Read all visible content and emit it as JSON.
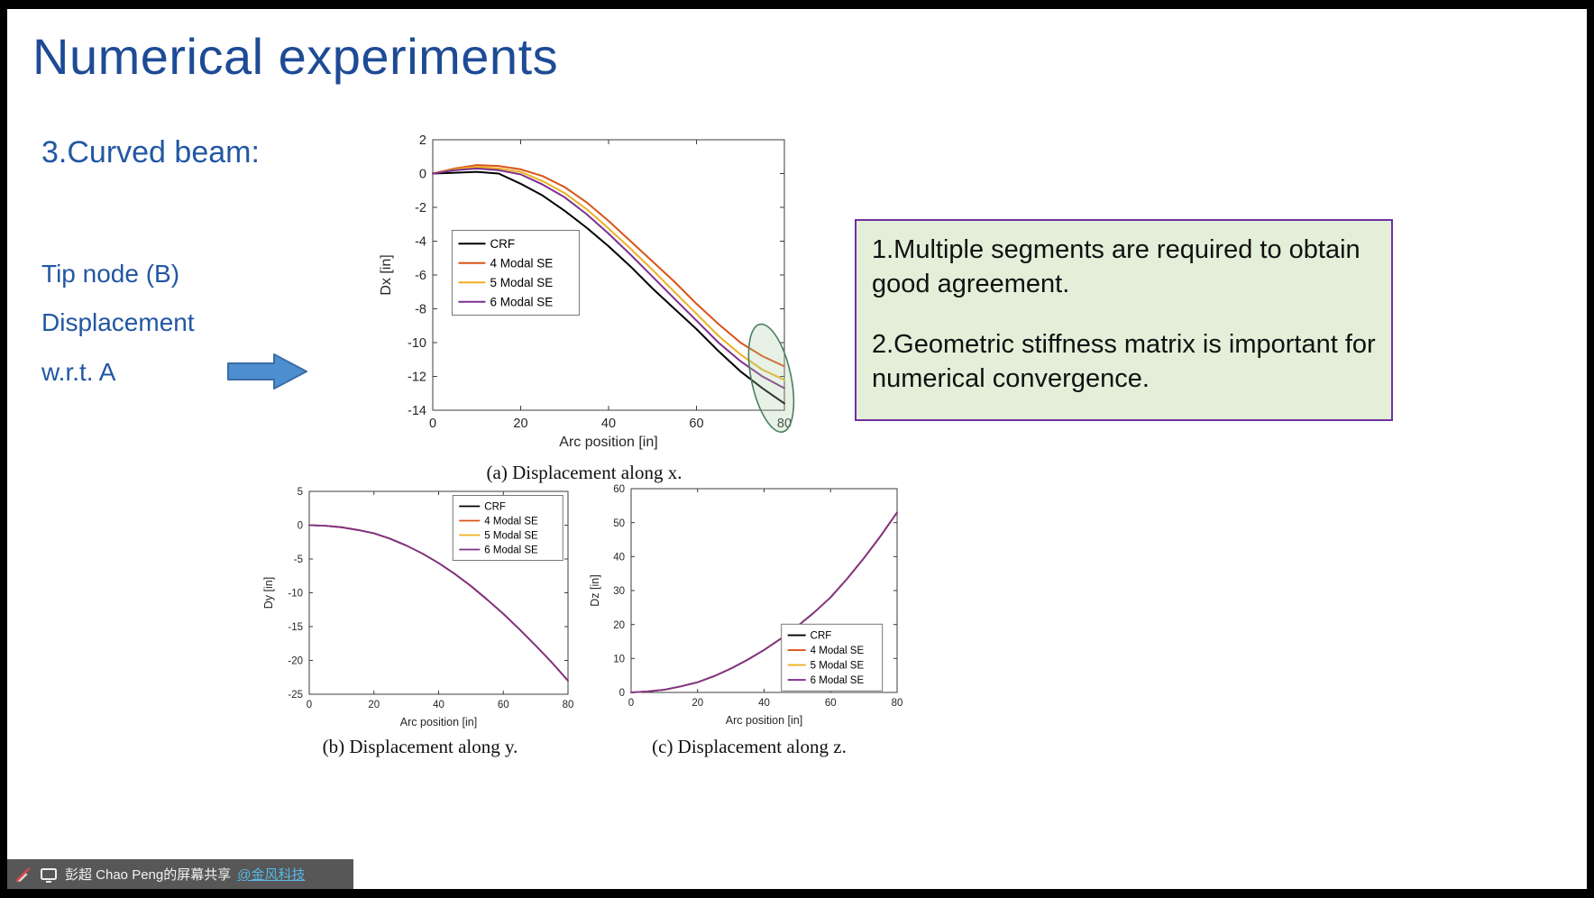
{
  "window": {
    "share_bar": {
      "presenter": "彭超 Chao Peng的屏幕共享",
      "org_link": "@金风科技",
      "icons": [
        "annotation-disabled-icon",
        "screen-share-icon"
      ],
      "bar_color": "#575757",
      "link_color": "#56b8e8"
    }
  },
  "slide": {
    "title": "Numerical experiments",
    "section": "3.Curved beam:",
    "left_notes": [
      "Tip node (B)",
      "Displacement",
      "w.r.t. A"
    ],
    "arrow_icon": "right-arrow",
    "colors": {
      "title_blue": "#1e4b96",
      "text_blue": "#2257a4",
      "arrow_fill": "#4d8ed0",
      "callout_border": "#7030a0",
      "callout_fill": "#e3efd9"
    },
    "callout": {
      "lines": [
        "1.Multiple segments are required to obtain good agreement.",
        "2.Geometric stiffness matrix is important for numerical convergence."
      ]
    }
  },
  "chart_data": [
    {
      "id": "a",
      "type": "line",
      "caption": "(a) Displacement along x.",
      "xlabel": "Arc position [in]",
      "ylabel": "Dx [in]",
      "xlim": [
        0,
        80
      ],
      "ylim": [
        -14,
        2
      ],
      "xticks": [
        0,
        20,
        40,
        60,
        80
      ],
      "yticks": [
        -14,
        -12,
        -10,
        -8,
        -6,
        -4,
        -2,
        0,
        2
      ],
      "grid": false,
      "legend_position": "left-middle",
      "x": [
        0,
        5,
        10,
        15,
        20,
        25,
        30,
        35,
        40,
        45,
        50,
        55,
        60,
        65,
        70,
        75,
        80
      ],
      "series": [
        {
          "name": "CRF",
          "color": "#000000",
          "values": [
            0,
            0.05,
            0.1,
            0,
            -0.6,
            -1.3,
            -2.2,
            -3.2,
            -4.3,
            -5.5,
            -6.8,
            -8.0,
            -9.2,
            -10.5,
            -11.7,
            -12.7,
            -13.6
          ]
        },
        {
          "name": "4 Modal SE",
          "color": "#D95319",
          "values": [
            0,
            0.3,
            0.5,
            0.45,
            0.25,
            -0.15,
            -0.8,
            -1.7,
            -2.8,
            -4.0,
            -5.2,
            -6.4,
            -7.7,
            -8.9,
            -10.0,
            -10.8,
            -11.4
          ]
        },
        {
          "name": "5 Modal SE",
          "color": "#EDB120",
          "values": [
            0,
            0.25,
            0.4,
            0.3,
            0.1,
            -0.45,
            -1.15,
            -2.1,
            -3.25,
            -4.45,
            -5.7,
            -7.0,
            -8.3,
            -9.6,
            -10.7,
            -11.6,
            -12.2
          ]
        },
        {
          "name": "6 Modal SE",
          "color": "#7E2F8E",
          "values": [
            0,
            0.2,
            0.3,
            0.2,
            -0.05,
            -0.65,
            -1.4,
            -2.4,
            -3.55,
            -4.8,
            -6.1,
            -7.4,
            -8.7,
            -10.0,
            -11.1,
            -12.0,
            -12.7
          ]
        }
      ],
      "annotation": {
        "shape": "ellipse",
        "purpose": "highlight-tip-region",
        "x": 77,
        "y": -12.1,
        "color": "#4a7f62"
      }
    },
    {
      "id": "b",
      "type": "line",
      "caption": "(b) Displacement along y.",
      "xlabel": "Arc position [in]",
      "ylabel": "Dy [in]",
      "xlim": [
        0,
        80
      ],
      "ylim": [
        -25,
        5
      ],
      "xticks": [
        0,
        20,
        40,
        60,
        80
      ],
      "yticks": [
        -25,
        -20,
        -15,
        -10,
        -5,
        0,
        5
      ],
      "grid": false,
      "legend_position": "top-right",
      "x": [
        0,
        5,
        10,
        15,
        20,
        25,
        30,
        35,
        40,
        45,
        50,
        55,
        60,
        65,
        70,
        75,
        80
      ],
      "series": [
        {
          "name": "CRF",
          "color": "#000000",
          "values": [
            0,
            -0.08,
            -0.3,
            -0.7,
            -1.2,
            -2.0,
            -3.0,
            -4.2,
            -5.6,
            -7.2,
            -9.0,
            -11.0,
            -13.1,
            -15.4,
            -17.8,
            -20.3,
            -23.0
          ]
        },
        {
          "name": "4 Modal SE",
          "color": "#D95319",
          "values": [
            0,
            -0.08,
            -0.3,
            -0.7,
            -1.2,
            -2.0,
            -3.0,
            -4.2,
            -5.6,
            -7.2,
            -9.0,
            -11.0,
            -13.1,
            -15.4,
            -17.8,
            -20.3,
            -23.0
          ]
        },
        {
          "name": "5 Modal SE",
          "color": "#EDB120",
          "values": [
            0,
            -0.08,
            -0.3,
            -0.7,
            -1.2,
            -2.0,
            -3.0,
            -4.2,
            -5.6,
            -7.2,
            -9.0,
            -11.0,
            -13.1,
            -15.4,
            -17.8,
            -20.3,
            -23.0
          ]
        },
        {
          "name": "6 Modal SE",
          "color": "#7E2F8E",
          "values": [
            0,
            -0.08,
            -0.3,
            -0.7,
            -1.2,
            -2.0,
            -3.0,
            -4.2,
            -5.6,
            -7.2,
            -9.0,
            -11.0,
            -13.1,
            -15.4,
            -17.8,
            -20.3,
            -23.0
          ]
        }
      ]
    },
    {
      "id": "c",
      "type": "line",
      "caption": "(c) Displacement along z.",
      "xlabel": "Arc position [in]",
      "ylabel": "Dz [in]",
      "xlim": [
        0,
        80
      ],
      "ylim": [
        0,
        60
      ],
      "xticks": [
        0,
        20,
        40,
        60,
        80
      ],
      "yticks": [
        0,
        10,
        20,
        30,
        40,
        50,
        60
      ],
      "grid": false,
      "legend_position": "right-lower",
      "x": [
        0,
        5,
        10,
        15,
        20,
        25,
        30,
        35,
        40,
        45,
        50,
        55,
        60,
        65,
        70,
        75,
        80
      ],
      "series": [
        {
          "name": "CRF",
          "color": "#000000",
          "values": [
            0,
            0.3,
            0.8,
            1.8,
            3.0,
            4.8,
            7.0,
            9.6,
            12.5,
            15.8,
            19.5,
            23.5,
            28.0,
            33.5,
            39.5,
            46.0,
            53.0
          ]
        },
        {
          "name": "4 Modal SE",
          "color": "#D95319",
          "values": [
            0,
            0.3,
            0.8,
            1.8,
            3.0,
            4.8,
            7.0,
            9.6,
            12.5,
            15.8,
            19.5,
            23.5,
            28.0,
            33.5,
            39.5,
            46.0,
            53.0
          ]
        },
        {
          "name": "5 Modal SE",
          "color": "#EDB120",
          "values": [
            0,
            0.3,
            0.8,
            1.8,
            3.0,
            4.8,
            7.0,
            9.6,
            12.5,
            15.8,
            19.5,
            23.5,
            28.0,
            33.5,
            39.5,
            46.0,
            53.0
          ]
        },
        {
          "name": "6 Modal SE",
          "color": "#7E2F8E",
          "values": [
            0,
            0.3,
            0.8,
            1.8,
            3.0,
            4.8,
            7.0,
            9.6,
            12.5,
            15.8,
            19.5,
            23.5,
            28.0,
            33.5,
            39.5,
            46.0,
            53.0
          ]
        }
      ]
    }
  ]
}
